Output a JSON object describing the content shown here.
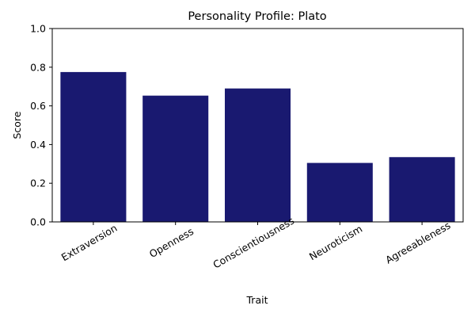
{
  "chart_data": {
    "type": "bar",
    "title": "Personality Profile: Plato",
    "xlabel": "Trait",
    "ylabel": "Score",
    "categories": [
      "Extraversion",
      "Openness",
      "Conscientiousness",
      "Neuroticism",
      "Agreeableness"
    ],
    "values": [
      0.775,
      0.653,
      0.69,
      0.305,
      0.335
    ],
    "ylim": [
      0,
      1.0
    ],
    "yticks": [
      "0.0",
      "0.2",
      "0.4",
      "0.6",
      "0.8",
      "1.0"
    ],
    "bar_color": "#191970",
    "grid": false,
    "xtick_rotation_deg": 30
  }
}
